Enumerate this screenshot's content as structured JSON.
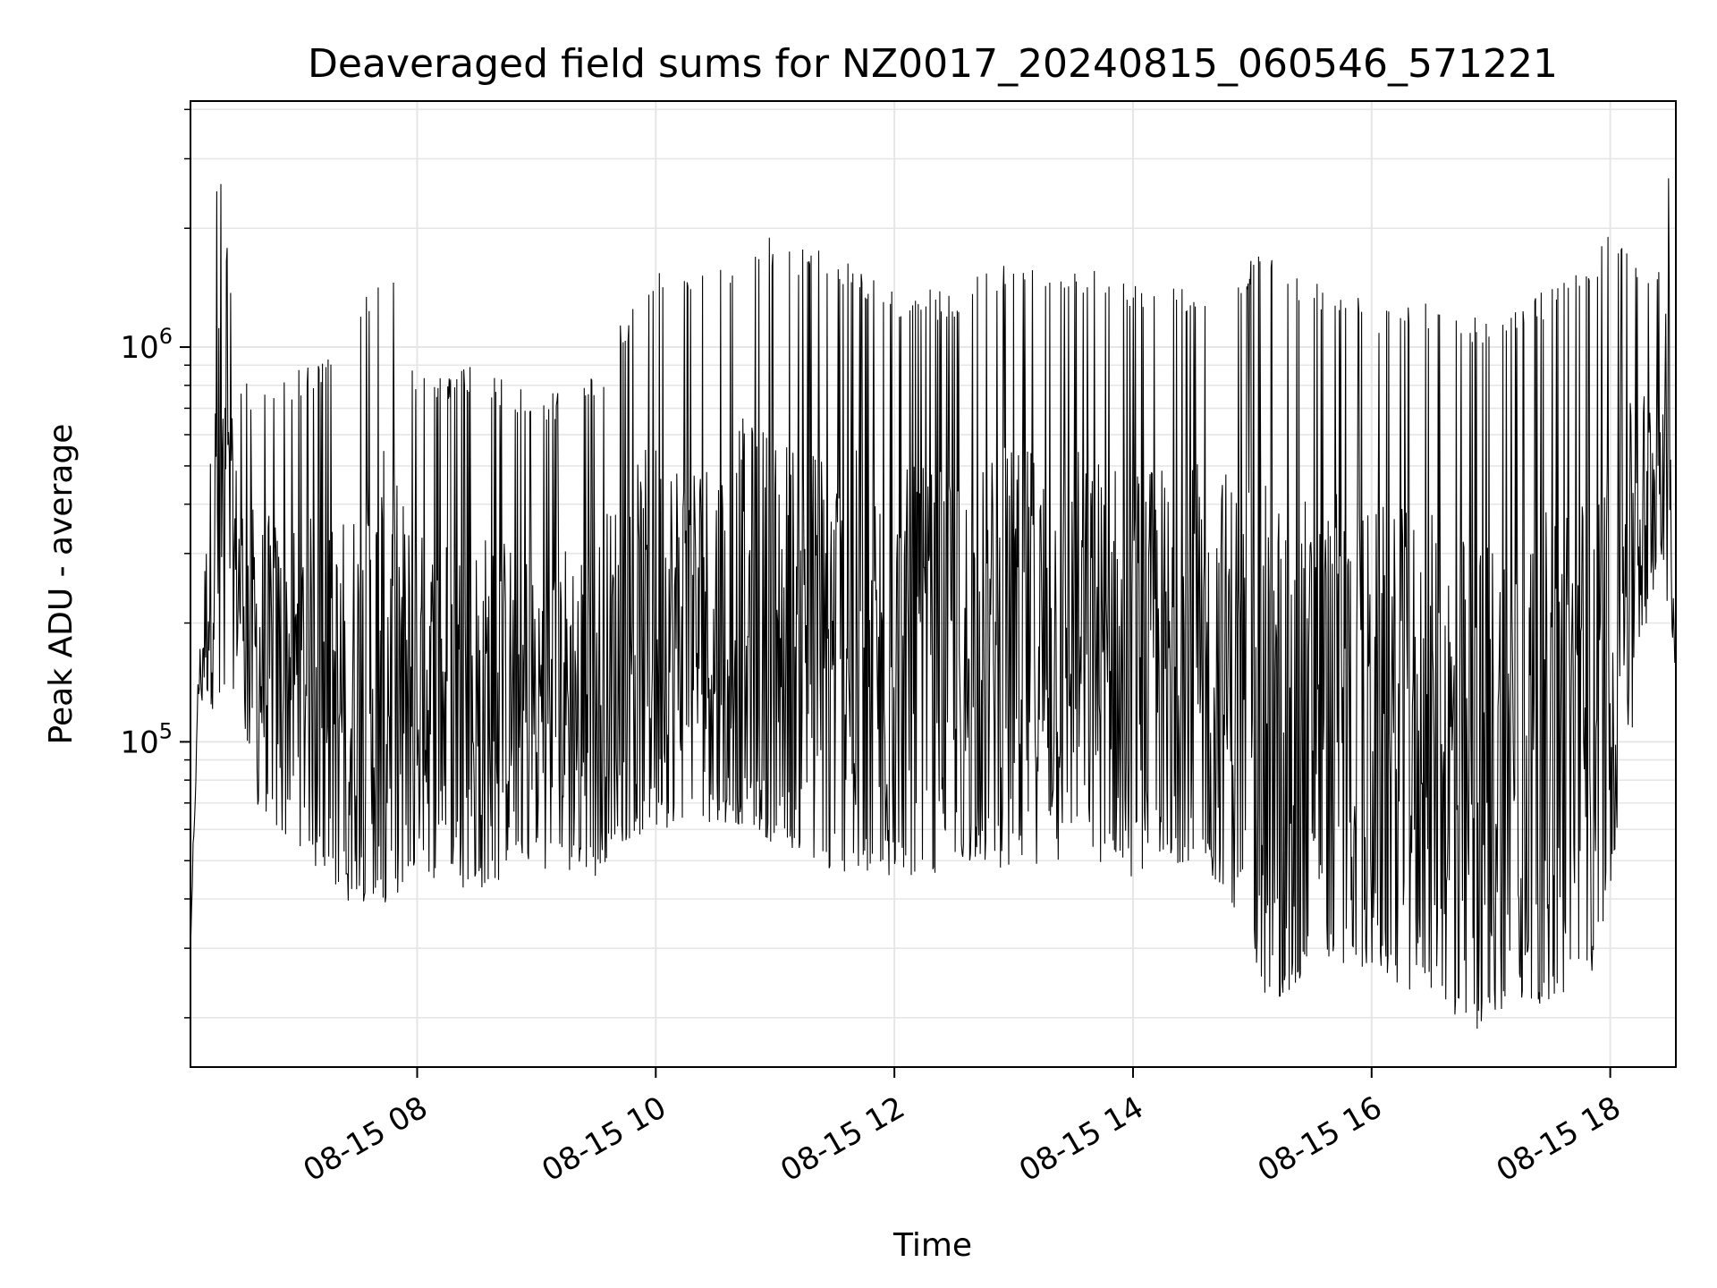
{
  "chart_data": {
    "type": "line",
    "title": "Deaveraged field sums for NZ0017_20240815_060546_571221",
    "xlabel": "Time",
    "ylabel": "Peak ADU - average",
    "yscale": "log",
    "grid": true,
    "xlim": [
      "2024-08-15 06:06",
      "2024-08-15 18:33"
    ],
    "ylim": [
      15000,
      4200000
    ],
    "x_ticks": [
      {
        "value": "2024-08-15 08:00",
        "label": "08-15 08"
      },
      {
        "value": "2024-08-15 10:00",
        "label": "08-15 10"
      },
      {
        "value": "2024-08-15 12:00",
        "label": "08-15 12"
      },
      {
        "value": "2024-08-15 14:00",
        "label": "08-15 14"
      },
      {
        "value": "2024-08-15 16:00",
        "label": "08-15 16"
      },
      {
        "value": "2024-08-15 18:00",
        "label": "08-15 18"
      }
    ],
    "y_ticks": [
      {
        "value": 100000,
        "base": "10",
        "exp": "5"
      },
      {
        "value": 1000000,
        "base": "10",
        "exp": "6"
      }
    ],
    "series": [
      {
        "color": "#000000",
        "envelope": [
          {
            "x": "2024-08-15 06:06",
            "low": 30000,
            "high": 30000
          },
          {
            "x": "2024-08-15 06:10",
            "low": 120000,
            "high": 170000
          },
          {
            "x": "2024-08-15 06:20",
            "low": 120000,
            "high": 3500000
          },
          {
            "x": "2024-08-15 06:30",
            "low": 140000,
            "high": 850000
          },
          {
            "x": "2024-08-15 06:40",
            "low": 65000,
            "high": 800000
          },
          {
            "x": "2024-08-15 07:00",
            "low": 55000,
            "high": 900000
          },
          {
            "x": "2024-08-15 07:20",
            "low": 40000,
            "high": 950000
          },
          {
            "x": "2024-08-15 07:45",
            "low": 38000,
            "high": 1800000
          },
          {
            "x": "2024-08-15 08:00",
            "low": 45000,
            "high": 850000
          },
          {
            "x": "2024-08-15 08:30",
            "low": 42000,
            "high": 900000
          },
          {
            "x": "2024-08-15 09:00",
            "low": 48000,
            "high": 750000
          },
          {
            "x": "2024-08-15 09:30",
            "low": 45000,
            "high": 850000
          },
          {
            "x": "2024-08-15 09:40",
            "low": 55000,
            "high": 1100000
          },
          {
            "x": "2024-08-15 10:00",
            "low": 60000,
            "high": 1600000
          },
          {
            "x": "2024-08-15 10:30",
            "low": 62000,
            "high": 1500000
          },
          {
            "x": "2024-08-15 10:45",
            "low": 60000,
            "high": 1950000
          },
          {
            "x": "2024-08-15 11:30",
            "low": 45000,
            "high": 1750000
          },
          {
            "x": "2024-08-15 12:00",
            "low": 45000,
            "high": 1400000
          },
          {
            "x": "2024-08-15 12:30",
            "low": 46000,
            "high": 1400000
          },
          {
            "x": "2024-08-15 13:00",
            "low": 48000,
            "high": 1700000
          },
          {
            "x": "2024-08-15 13:30",
            "low": 50000,
            "high": 1650000
          },
          {
            "x": "2024-08-15 14:00",
            "low": 45000,
            "high": 1500000
          },
          {
            "x": "2024-08-15 14:30",
            "low": 50000,
            "high": 1400000
          },
          {
            "x": "2024-08-15 14:45",
            "low": 42000,
            "high": 1500000
          },
          {
            "x": "2024-08-15 15:00",
            "low": 30000,
            "high": 1700000
          },
          {
            "x": "2024-08-15 15:10",
            "low": 19000,
            "high": 1700000
          },
          {
            "x": "2024-08-15 15:30",
            "low": 28000,
            "high": 1500000
          },
          {
            "x": "2024-08-15 16:00",
            "low": 26000,
            "high": 1300000
          },
          {
            "x": "2024-08-15 16:30",
            "low": 22000,
            "high": 1300000
          },
          {
            "x": "2024-08-15 16:50",
            "low": 18000,
            "high": 1200000
          },
          {
            "x": "2024-08-15 17:10",
            "low": 22000,
            "high": 1300000
          },
          {
            "x": "2024-08-15 17:30",
            "low": 21000,
            "high": 1400000
          },
          {
            "x": "2024-08-15 17:50",
            "low": 25000,
            "high": 1700000
          },
          {
            "x": "2024-08-15 18:00",
            "low": 40000,
            "high": 2000000
          },
          {
            "x": "2024-08-15 18:15",
            "low": 150000,
            "high": 1600000
          },
          {
            "x": "2024-08-15 18:25",
            "low": 300000,
            "high": 1700000
          },
          {
            "x": "2024-08-15 18:30",
            "low": 200000,
            "high": 3500000
          },
          {
            "x": "2024-08-15 18:33",
            "low": 150000,
            "high": 150000
          }
        ]
      }
    ]
  }
}
